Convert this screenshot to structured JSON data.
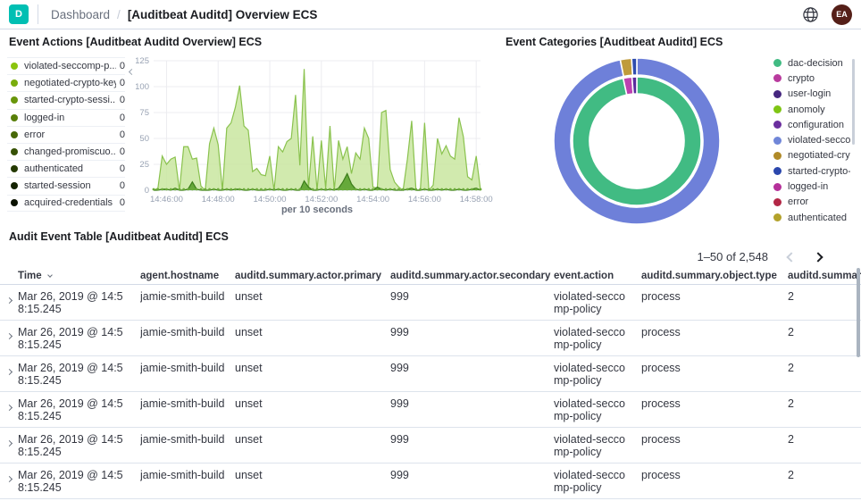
{
  "header": {
    "logo_letter": "D",
    "logo_color": "#00bfb3",
    "breadcrumb": "Dashboard",
    "breadcrumb_separator": "/",
    "title": "[Auditbeat Auditd] Overview ECS",
    "avatar_initials": "EA",
    "avatar_color": "#551f18",
    "icons": {
      "help": "globe-icon",
      "user": "avatar"
    }
  },
  "panels": {
    "event_actions": {
      "title": "Event Actions [Auditbeat Auditd Overview] ECS",
      "legend": [
        {
          "label": "violated-seccomp-p...",
          "value": "0",
          "color": "#8ac40e"
        },
        {
          "label": "negotiated-crypto-key",
          "value": "0",
          "color": "#79ad0d"
        },
        {
          "label": "started-crypto-sessi...",
          "value": "0",
          "color": "#69960b"
        },
        {
          "label": "logged-in",
          "value": "0",
          "color": "#587f09"
        },
        {
          "label": "error",
          "value": "0",
          "color": "#476807"
        },
        {
          "label": "changed-promiscuo...",
          "value": "0",
          "color": "#365105"
        },
        {
          "label": "authenticated",
          "value": "0",
          "color": "#253a03"
        },
        {
          "label": "started-session",
          "value": "0",
          "color": "#142301"
        },
        {
          "label": "acquired-credentials",
          "value": "0",
          "color": "#0b1200"
        }
      ]
    },
    "event_categories": {
      "title": "Event Categories [Auditbeat Auditd] ECS",
      "legend": [
        {
          "label": "dac-decision",
          "color": "#41bb83"
        },
        {
          "label": "crypto",
          "color": "#b93b9e"
        },
        {
          "label": "user-login",
          "color": "#46277f"
        },
        {
          "label": "anomoly",
          "color": "#7fc514"
        },
        {
          "label": "configuration",
          "color": "#6b2e9e"
        },
        {
          "label": "violated-seccomp...",
          "color": "#7086d8"
        },
        {
          "label": "negotiated-crypto...",
          "color": "#b08a28"
        },
        {
          "label": "started-crypto-se...",
          "color": "#2b47ad"
        },
        {
          "label": "logged-in",
          "color": "#b5309a"
        },
        {
          "label": "error",
          "color": "#b32746"
        },
        {
          "label": "authenticated",
          "color": "#b3a22b"
        }
      ]
    },
    "audit_table": {
      "title": "Audit Event Table [Auditbeat Auditd] ECS",
      "pagination": {
        "range": "1–50 of 2,548"
      },
      "columns": [
        {
          "label": "Time"
        },
        {
          "label": "agent.hostname"
        },
        {
          "label": "auditd.summary.actor.primary"
        },
        {
          "label": "auditd.summary.actor.secondary"
        },
        {
          "label": "event.action"
        },
        {
          "label": "auditd.summary.object.type"
        },
        {
          "label": "auditd.summary"
        }
      ],
      "rows": [
        {
          "time": "Mar 26, 2019 @ 14:58:15.245",
          "hostname": "jamie-smith-build",
          "actor_primary": "unset",
          "actor_secondary": "999",
          "event_action": "violated-seccomp-policy",
          "object_type": "process",
          "summary": "2"
        },
        {
          "time": "Mar 26, 2019 @ 14:58:15.245",
          "hostname": "jamie-smith-build",
          "actor_primary": "unset",
          "actor_secondary": "999",
          "event_action": "violated-seccomp-policy",
          "object_type": "process",
          "summary": "2"
        },
        {
          "time": "Mar 26, 2019 @ 14:58:15.245",
          "hostname": "jamie-smith-build",
          "actor_primary": "unset",
          "actor_secondary": "999",
          "event_action": "violated-seccomp-policy",
          "object_type": "process",
          "summary": "2"
        },
        {
          "time": "Mar 26, 2019 @ 14:58:15.245",
          "hostname": "jamie-smith-build",
          "actor_primary": "unset",
          "actor_secondary": "999",
          "event_action": "violated-seccomp-policy",
          "object_type": "process",
          "summary": "2"
        },
        {
          "time": "Mar 26, 2019 @ 14:58:15.245",
          "hostname": "jamie-smith-build",
          "actor_primary": "unset",
          "actor_secondary": "999",
          "event_action": "violated-seccomp-policy",
          "object_type": "process",
          "summary": "2"
        },
        {
          "time": "Mar 26, 2019 @ 14:58:15.245",
          "hostname": "jamie-smith-build",
          "actor_primary": "unset",
          "actor_secondary": "999",
          "event_action": "violated-seccomp-policy",
          "object_type": "process",
          "summary": "2"
        }
      ]
    }
  },
  "chart_data": [
    {
      "type": "area",
      "title": "Event Actions [Auditbeat Auditd Overview] ECS",
      "xlabel": "per 10 seconds",
      "ylabel": "",
      "ylim": [
        0,
        125
      ],
      "y_ticks": [
        0,
        25,
        50,
        75,
        100,
        125
      ],
      "x_tick_labels": [
        "14:46:00",
        "14:48:00",
        "14:50:00",
        "14:52:00",
        "14:54:00",
        "14:56:00",
        "14:58:00"
      ],
      "x_tick_offset": 3,
      "x_tick_every": 12,
      "grid": true,
      "legend_position": "left",
      "series": [
        {
          "name": "violated-seccomp-policy",
          "fill": "#c9e6a0",
          "line": "#8ac24e",
          "values": [
            0,
            2,
            33,
            25,
            30,
            32,
            0,
            42,
            42,
            30,
            31,
            4,
            0,
            45,
            60,
            44,
            0,
            60,
            65,
            80,
            101,
            62,
            58,
            18,
            21,
            15,
            14,
            33,
            0,
            42,
            37,
            47,
            50,
            92,
            24,
            117,
            2,
            52,
            0,
            48,
            2,
            62,
            0,
            48,
            30,
            42,
            16,
            36,
            30,
            60,
            50,
            3,
            2,
            75,
            77,
            20,
            8,
            3,
            0,
            30,
            67,
            0,
            0,
            65,
            0,
            5,
            50,
            35,
            43,
            33,
            30,
            70,
            52,
            13,
            10,
            33,
            0
          ]
        },
        {
          "name": "negotiated-crypto-key",
          "fill": "#5aa22e",
          "line": "#3c7d1a",
          "values": [
            0,
            0,
            1,
            1,
            0,
            2,
            0,
            0,
            1,
            8,
            1,
            0,
            0,
            0,
            1,
            0,
            0,
            1,
            0,
            1,
            1,
            0,
            0,
            1,
            0,
            0,
            0,
            1,
            0,
            1,
            0,
            0,
            1,
            0,
            0,
            9,
            3,
            0,
            0,
            1,
            0,
            1,
            0,
            2,
            8,
            16,
            6,
            1,
            0,
            1,
            0,
            0,
            3,
            1,
            0,
            1,
            0,
            0,
            0,
            1,
            2,
            0,
            0,
            1,
            0,
            0,
            1,
            0,
            1,
            0,
            0,
            1,
            0,
            0,
            1,
            2,
            0
          ]
        }
      ]
    },
    {
      "type": "pie",
      "title": "Event Categories [Auditbeat Auditd] ECS",
      "donut": true,
      "rings": [
        {
          "name": "inner",
          "r0": 53,
          "r1": 72,
          "slices": [
            {
              "label": "dac-decision",
              "pct": 96.6,
              "color": "#41bb83"
            },
            {
              "label": "crypto",
              "pct": 2.2,
              "color": "#bc41b0"
            },
            {
              "label": "user-login",
              "pct": 1.2,
              "color": "#5a2b9d"
            }
          ]
        },
        {
          "name": "outer",
          "r0": 74,
          "r1": 93,
          "slices": [
            {
              "label": "violated-seccomp-policy",
              "pct": 96.8,
              "color": "#6e80d9"
            },
            {
              "label": "negotiated-crypto-key",
              "pct": 2.2,
              "color": "#bf9b3b"
            },
            {
              "label": "started-crypto-session",
              "pct": 1.0,
              "color": "#2f4dae"
            }
          ]
        }
      ]
    }
  ]
}
